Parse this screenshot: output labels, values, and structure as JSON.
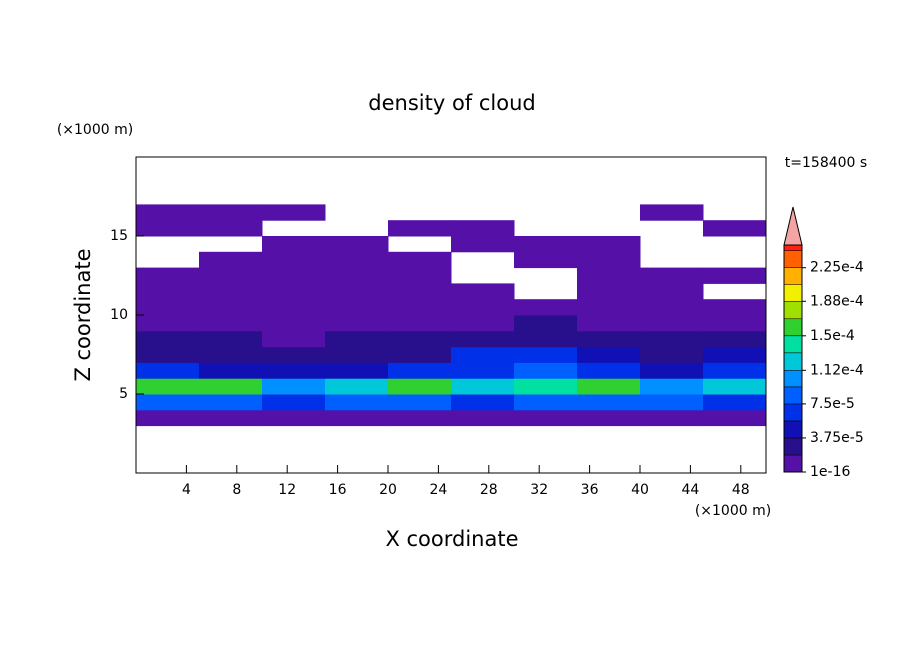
{
  "chart_data": {
    "type": "contour",
    "title": "density of cloud",
    "xlabel": "X coordinate",
    "ylabel": "Z coordinate",
    "xunit": "(×1000 m)",
    "yunit": "(×1000 m)",
    "annotation": "t=158400 s",
    "xlim": [
      0,
      50
    ],
    "ylim": [
      0,
      20
    ],
    "xticks": [
      4,
      8,
      12,
      16,
      20,
      24,
      28,
      32,
      36,
      40,
      44,
      48
    ],
    "yticks": [
      5,
      10,
      15
    ],
    "xedges": [
      0,
      5,
      10,
      15,
      20,
      25,
      30,
      35,
      40,
      45,
      50
    ],
    "zedges": [
      3,
      4,
      5,
      6,
      7,
      8,
      9,
      10,
      11,
      12,
      13,
      14,
      15,
      16,
      17
    ],
    "z": [
      [
        1e-05,
        1e-05,
        1e-05,
        1e-05,
        1e-05,
        1e-05,
        1e-05,
        1e-05,
        1e-05,
        1e-05
      ],
      [
        8e-05,
        8e-05,
        7e-05,
        9e-05,
        8e-05,
        7e-05,
        8e-05,
        9e-05,
        8e-05,
        6e-05
      ],
      [
        0.00015,
        0.00015,
        0.00011,
        0.00012,
        0.00015,
        0.00012,
        0.00014,
        0.00015,
        0.00011,
        0.00012
      ],
      [
        6e-05,
        5e-05,
        4e-05,
        5e-05,
        6e-05,
        6e-05,
        8e-05,
        7e-05,
        5e-05,
        6e-05
      ],
      [
        3e-05,
        2.5e-05,
        2e-05,
        3e-05,
        3e-05,
        6e-05,
        6e-05,
        4e-05,
        3e-05,
        5e-05
      ],
      [
        2e-05,
        2e-05,
        1.5e-05,
        2e-05,
        2e-05,
        3e-05,
        3e-05,
        2e-05,
        2e-05,
        3e-05
      ],
      [
        1.5e-05,
        1e-05,
        1e-05,
        5e-06,
        1e-05,
        1.5e-05,
        2e-05,
        1.5e-05,
        1e-05,
        1e-05
      ],
      [
        5e-06,
        2e-06,
        1e-06,
        1e-06,
        1e-06,
        2e-06,
        1e-06,
        5e-06,
        2e-06,
        1e-06
      ],
      [
        1e-06,
        1e-06,
        1e-06,
        1e-06,
        1e-06,
        1e-06,
        null,
        1e-06,
        1e-06,
        null
      ],
      [
        1e-06,
        1e-06,
        1e-06,
        1e-06,
        1e-06,
        null,
        null,
        1e-06,
        1e-06,
        1e-06
      ],
      [
        null,
        1e-06,
        1e-06,
        1e-06,
        1e-06,
        null,
        1e-06,
        1e-06,
        null,
        null
      ],
      [
        null,
        null,
        1e-06,
        1e-06,
        null,
        1e-06,
        1e-06,
        1e-06,
        null,
        null
      ],
      [
        1e-06,
        1e-06,
        null,
        null,
        1e-06,
        1e-06,
        null,
        null,
        null,
        1e-06
      ],
      [
        1e-06,
        1e-06,
        1e-06,
        null,
        null,
        null,
        null,
        null,
        1e-06,
        null
      ]
    ],
    "levels": [
      1e-16,
      1.875e-05,
      3.75e-05,
      5.625e-05,
      7.5e-05,
      9.375e-05,
      0.000112,
      0.00013125,
      0.00015,
      0.00016875,
      0.000188,
      0.00020625,
      0.000225,
      0.00024375
    ],
    "colors": [
      "#5510a8",
      "#28108c",
      "#1010b4",
      "#0030e8",
      "#0060ff",
      "#0090ff",
      "#00c8d8",
      "#00e0a0",
      "#30d030",
      "#a0e000",
      "#f0f000",
      "#ffb000",
      "#ff6000",
      "#ff2010"
    ],
    "extend_color": "#f4a4a4",
    "clim": [
      1e-16,
      0.00025
    ],
    "cbticks": [
      1e-16,
      {
        "value": 3.75e-05,
        "label": "3.75e-5"
      },
      {
        "value": 7.5e-05,
        "label": "7.5e-5"
      },
      {
        "value": 0.000112,
        "label": "1.12e-4"
      },
      {
        "value": 0.00015,
        "label": "1.5e-4"
      },
      {
        "value": 0.000188,
        "label": "1.88e-4"
      },
      {
        "value": 0.000225,
        "label": "2.25e-4"
      }
    ]
  }
}
